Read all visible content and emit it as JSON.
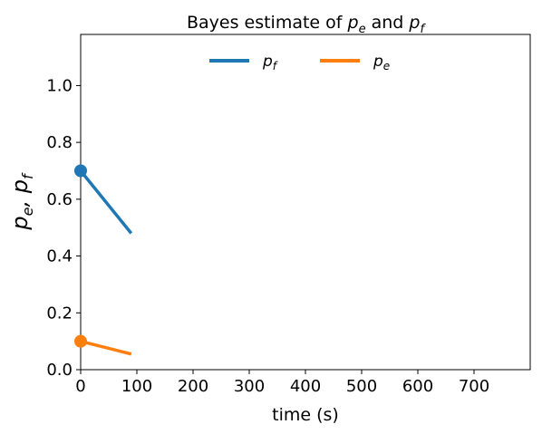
{
  "chart_data": {
    "type": "line",
    "title_prefix": "Bayes estimate of ",
    "title_var1_base": "p",
    "title_var1_sub": "e",
    "title_join": " and ",
    "title_var2_base": "p",
    "title_var2_sub": "f",
    "xlabel": "time (s)",
    "ylabel_var1_base": "p",
    "ylabel_var1_sub": "e",
    "ylabel_sep": ", ",
    "ylabel_var2_base": "p",
    "ylabel_var2_sub": "f",
    "xlim": [
      0,
      800
    ],
    "ylim": [
      0,
      1.18
    ],
    "xticks": [
      0,
      100,
      200,
      300,
      400,
      500,
      600,
      700
    ],
    "xtick_labels": [
      "0",
      "100",
      "200",
      "300",
      "400",
      "500",
      "600",
      "700"
    ],
    "yticks": [
      0.0,
      0.2,
      0.4,
      0.6,
      0.8,
      1.0
    ],
    "ytick_labels": [
      "0.0",
      "0.2",
      "0.4",
      "0.6",
      "0.8",
      "1.0"
    ],
    "grid": false,
    "legend_placement": "top-center",
    "series": [
      {
        "name_base": "p",
        "name_sub": "f",
        "color": "#1f77b4",
        "x": [
          0,
          90
        ],
        "y": [
          0.7,
          0.48
        ],
        "marker_at_start": true
      },
      {
        "name_base": "p",
        "name_sub": "e",
        "color": "#ff7f0e",
        "x": [
          0,
          90
        ],
        "y": [
          0.1,
          0.055
        ],
        "marker_at_start": true
      }
    ]
  }
}
